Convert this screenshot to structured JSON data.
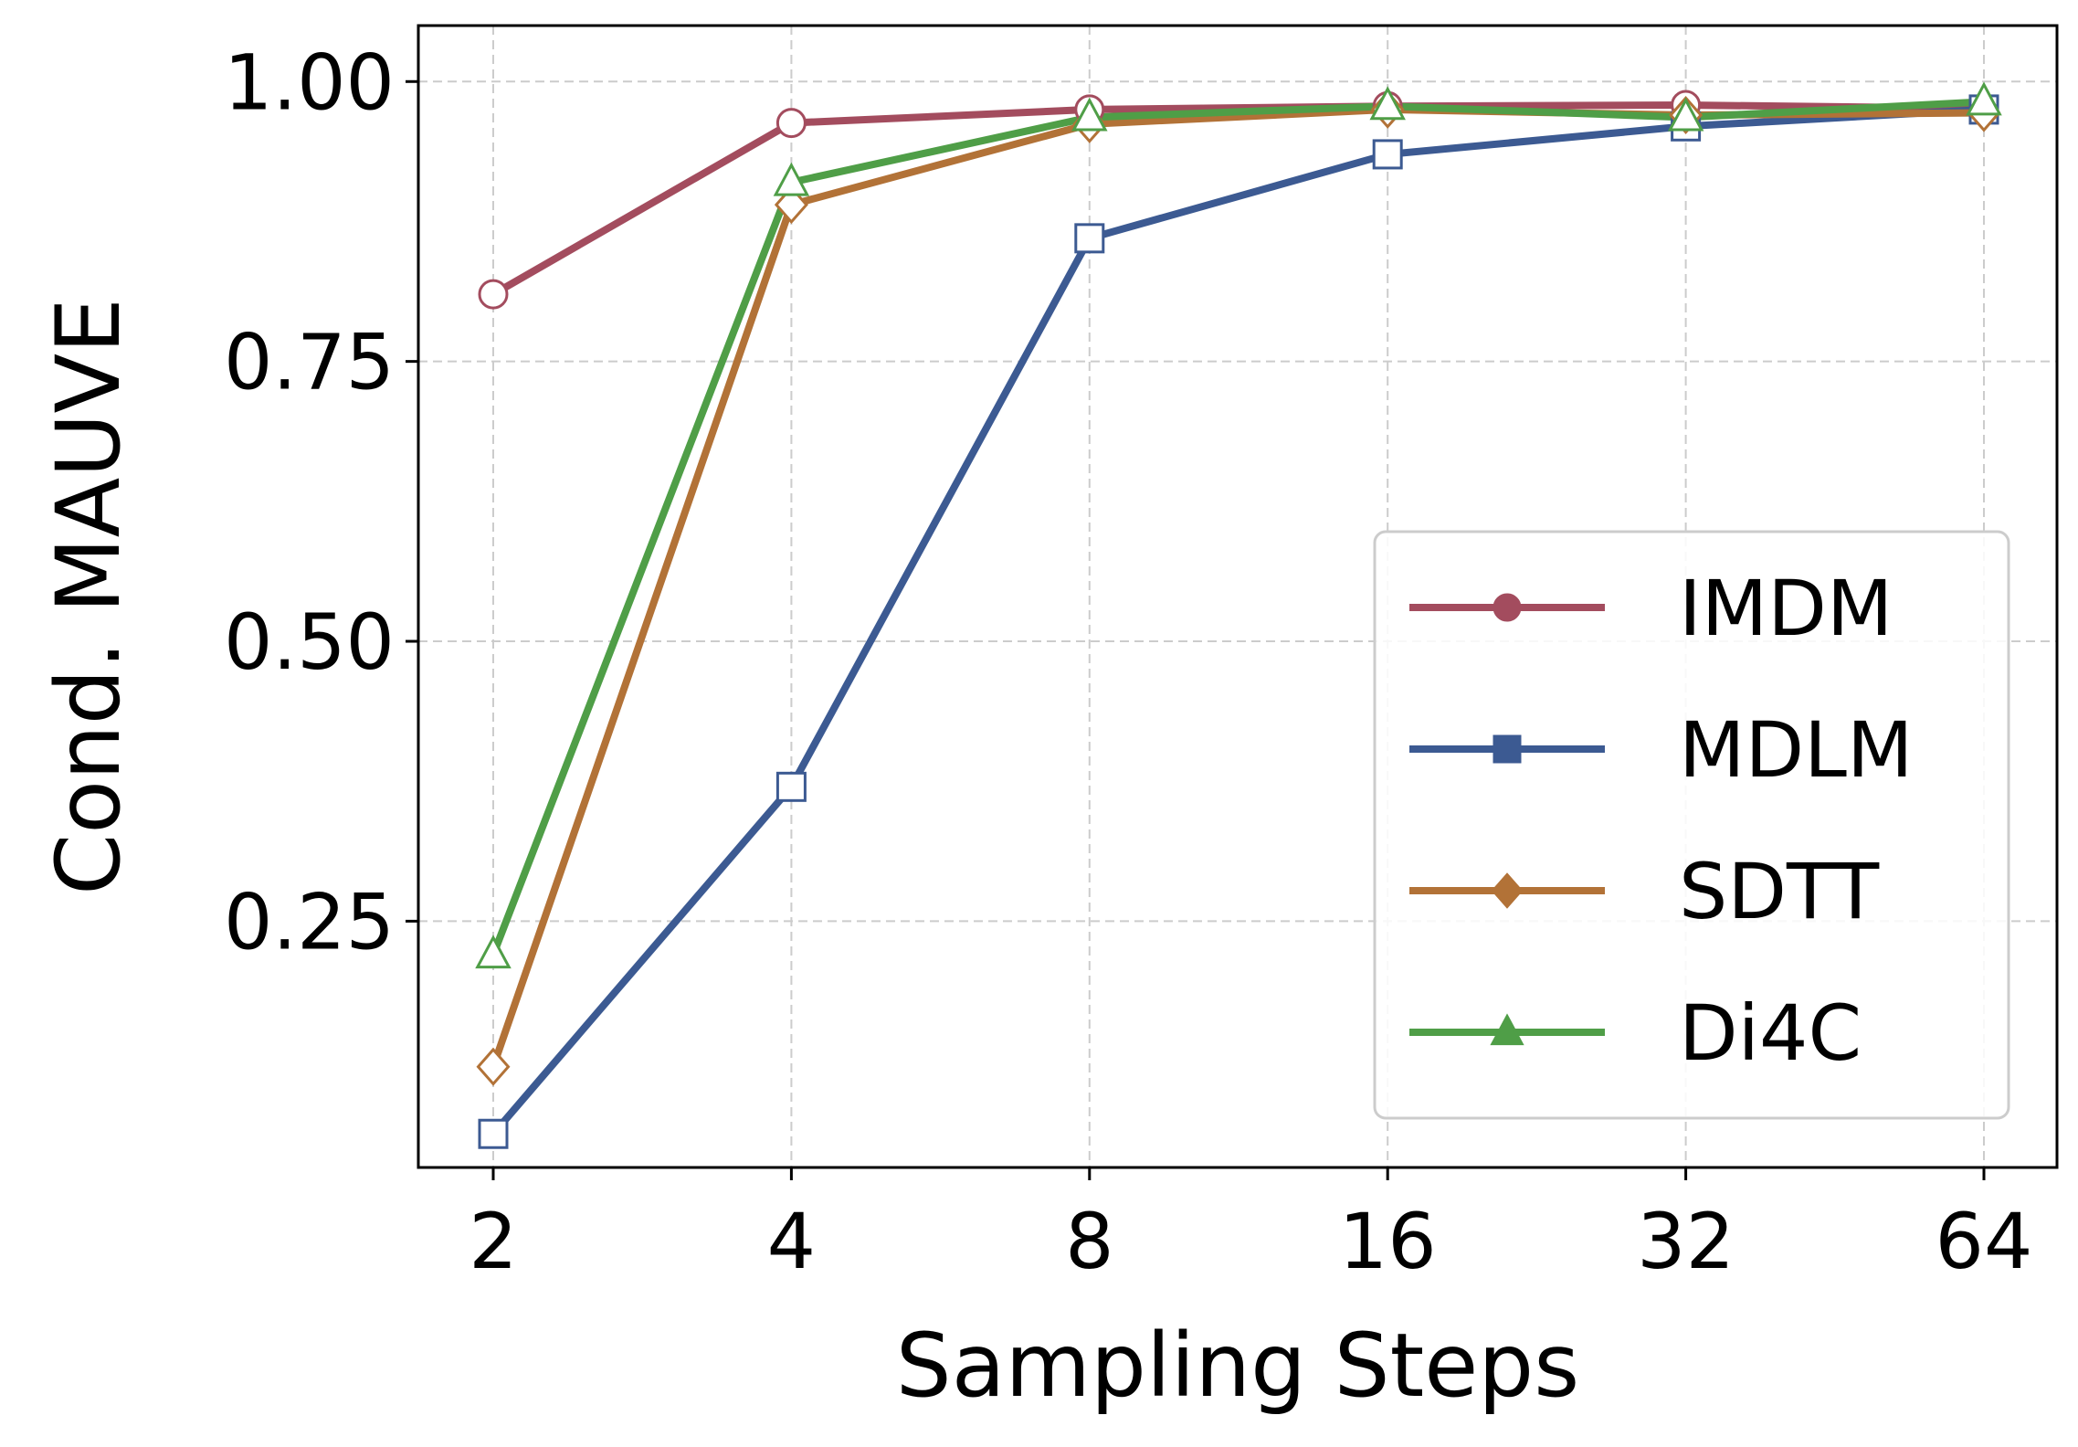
{
  "chart_data": {
    "type": "line",
    "xlabel": "Sampling Steps",
    "ylabel": "Cond. MAUVE",
    "x": [
      2,
      4,
      8,
      16,
      32,
      64
    ],
    "x_scale": "log2",
    "xticks": [
      "2",
      "4",
      "8",
      "16",
      "32",
      "64"
    ],
    "yticks": [
      "0.25",
      "0.50",
      "0.75",
      "1.00"
    ],
    "ylim": [
      0.03,
      1.05
    ],
    "grid": true,
    "legend_position": "lower-right",
    "series": [
      {
        "name": "IMDM",
        "color": "#a34c5e",
        "marker": "circle",
        "values": [
          0.81,
          0.963,
          0.975,
          0.978,
          0.979,
          0.976
        ]
      },
      {
        "name": "MDLM",
        "color": "#3c5a92",
        "marker": "square",
        "values": [
          0.06,
          0.37,
          0.86,
          0.935,
          0.96,
          0.975
        ]
      },
      {
        "name": "SDTT",
        "color": "#b27237",
        "marker": "diamond",
        "values": [
          0.12,
          0.89,
          0.962,
          0.975,
          0.97,
          0.972
        ]
      },
      {
        "name": "Di4C",
        "color": "#4f9e47",
        "marker": "triangle",
        "values": [
          0.22,
          0.91,
          0.968,
          0.978,
          0.968,
          0.982
        ]
      }
    ]
  }
}
